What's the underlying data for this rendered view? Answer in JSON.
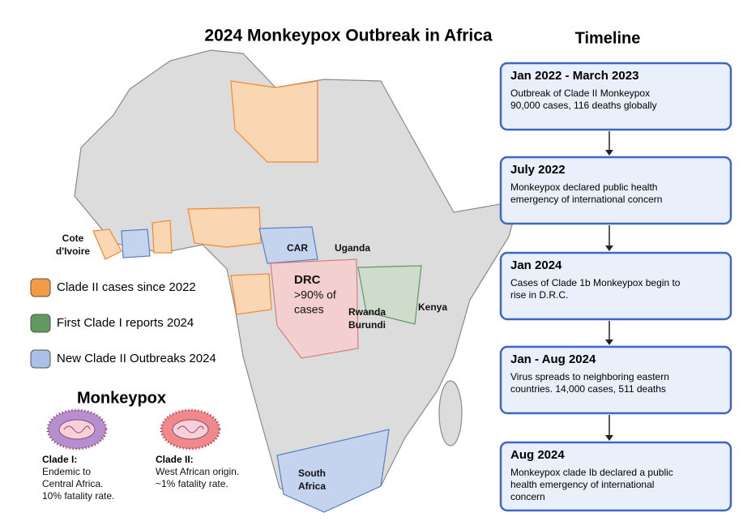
{
  "title": "2024 Monkeypox Outbreak in Africa",
  "map": {
    "labels": {
      "cote_divoire": [
        "Cote",
        "d'Ivoire"
      ],
      "car": "CAR",
      "uganda": "Uganda",
      "drc": [
        "DRC",
        ">90% of",
        "cases"
      ],
      "rwanda": "Rwanda",
      "burundi": "Burundi",
      "kenya": "Kenya",
      "south_africa": [
        "South",
        "Africa"
      ]
    }
  },
  "legend": [
    {
      "label": "Clade II cases since 2022",
      "color": "#f39a45"
    },
    {
      "label": "First Clade I reports 2024",
      "color": "#5f9a5f"
    },
    {
      "label": "New Clade II Outbreaks 2024",
      "color": "#a9c1e6"
    }
  ],
  "virus": {
    "title": "Monkeypox",
    "clades": [
      {
        "name": "Clade I:",
        "description": [
          "Endemic to",
          "Central Africa.",
          "10% fatality rate."
        ],
        "color": "#b58fd0"
      },
      {
        "name": "Clade II:",
        "description": [
          "West African origin.",
          "~1% fatality rate."
        ],
        "color": "#f08a8a"
      }
    ]
  },
  "timeline": {
    "title": "Timeline",
    "events": [
      {
        "date": "Jan 2022 - March 2023",
        "text": [
          "Outbreak of Clade II Monkeypox",
          "90,000 cases, 116 deaths globally"
        ]
      },
      {
        "date": "July 2022",
        "text": [
          "Monkeypox declared public health",
          "emergency of international concern"
        ]
      },
      {
        "date": "Jan 2024",
        "text": [
          "Cases of Clade 1b Monkeypox begin to",
          "rise in D.R.C."
        ]
      },
      {
        "date": "Jan - Aug 2024",
        "text": [
          "Virus spreads to neighboring eastern",
          "countries. 14,000 cases, 511 deaths"
        ]
      },
      {
        "date": "Aug 2024",
        "text": [
          "Monkeypox clade Ib declared a public",
          "health emergency of international",
          "concern"
        ]
      }
    ]
  }
}
